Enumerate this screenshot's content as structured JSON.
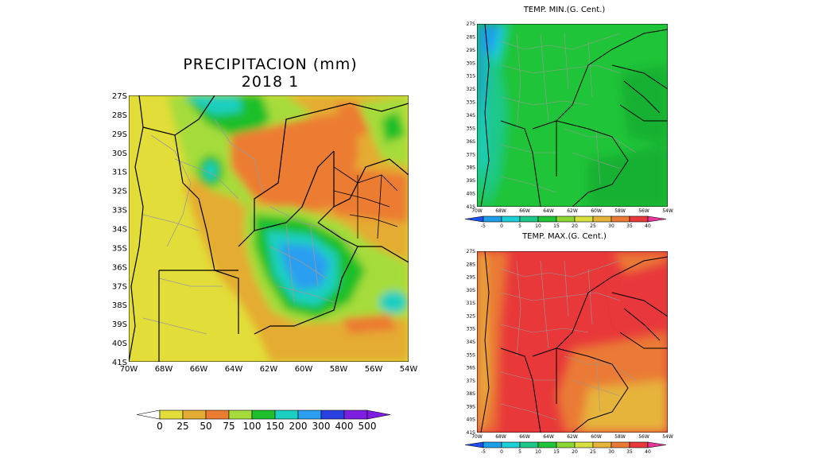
{
  "precip": {
    "title": "PRECIPITACION (mm)",
    "subtitle": "2018 1",
    "lat_labels": [
      "27S",
      "28S",
      "29S",
      "30S",
      "31S",
      "32S",
      "33S",
      "34S",
      "35S",
      "36S",
      "37S",
      "38S",
      "39S",
      "40S",
      "41S"
    ],
    "lon_labels": [
      "70W",
      "68W",
      "66W",
      "64W",
      "62W",
      "60W",
      "58W",
      "56W",
      "54W"
    ],
    "legend_values": [
      "0",
      "25",
      "50",
      "75",
      "100",
      "150",
      "200",
      "300",
      "400",
      "500"
    ],
    "legend_colors": [
      "#ffffff",
      "#e2dd38",
      "#e4ac32",
      "#ec7c32",
      "#a5dc3a",
      "#1dbf2a",
      "#1ccfc0",
      "#2a9ff1",
      "#2a3fe1",
      "#7d1ee0",
      "#ffffff"
    ]
  },
  "tmin": {
    "title": "TEMP. MIN.(G. Cent.)",
    "lat_labels": [
      "27S",
      "28S",
      "29S",
      "30S",
      "31S",
      "32S",
      "33S",
      "34S",
      "35S",
      "36S",
      "37S",
      "38S",
      "39S",
      "40S",
      "41S"
    ],
    "lon_labels": [
      "70W",
      "68W",
      "66W",
      "64W",
      "62W",
      "60W",
      "58W",
      "56W",
      "54W"
    ],
    "legend_values": [
      "-5",
      "0",
      "5",
      "10",
      "15",
      "20",
      "25",
      "30",
      "35",
      "40"
    ]
  },
  "tmax": {
    "title": "TEMP. MAX.(G. Cent.)",
    "lat_labels": [
      "27S",
      "28S",
      "29S",
      "30S",
      "31S",
      "32S",
      "33S",
      "34S",
      "35S",
      "36S",
      "37S",
      "38S",
      "39S",
      "40S",
      "41S"
    ],
    "lon_labels": [
      "70W",
      "68W",
      "66W",
      "64W",
      "62W",
      "60W",
      "58W",
      "56W",
      "54W"
    ],
    "legend_values": [
      "-5",
      "0",
      "5",
      "10",
      "15",
      "20",
      "25",
      "30",
      "35",
      "40"
    ]
  },
  "temp_legend_colors": [
    "#1e4ff0",
    "#1c9ee8",
    "#1dcfd6",
    "#1ec88a",
    "#20c438",
    "#8cd634",
    "#d8e040",
    "#e6b43a",
    "#ea7a34",
    "#e8383a",
    "#e6369c"
  ]
}
